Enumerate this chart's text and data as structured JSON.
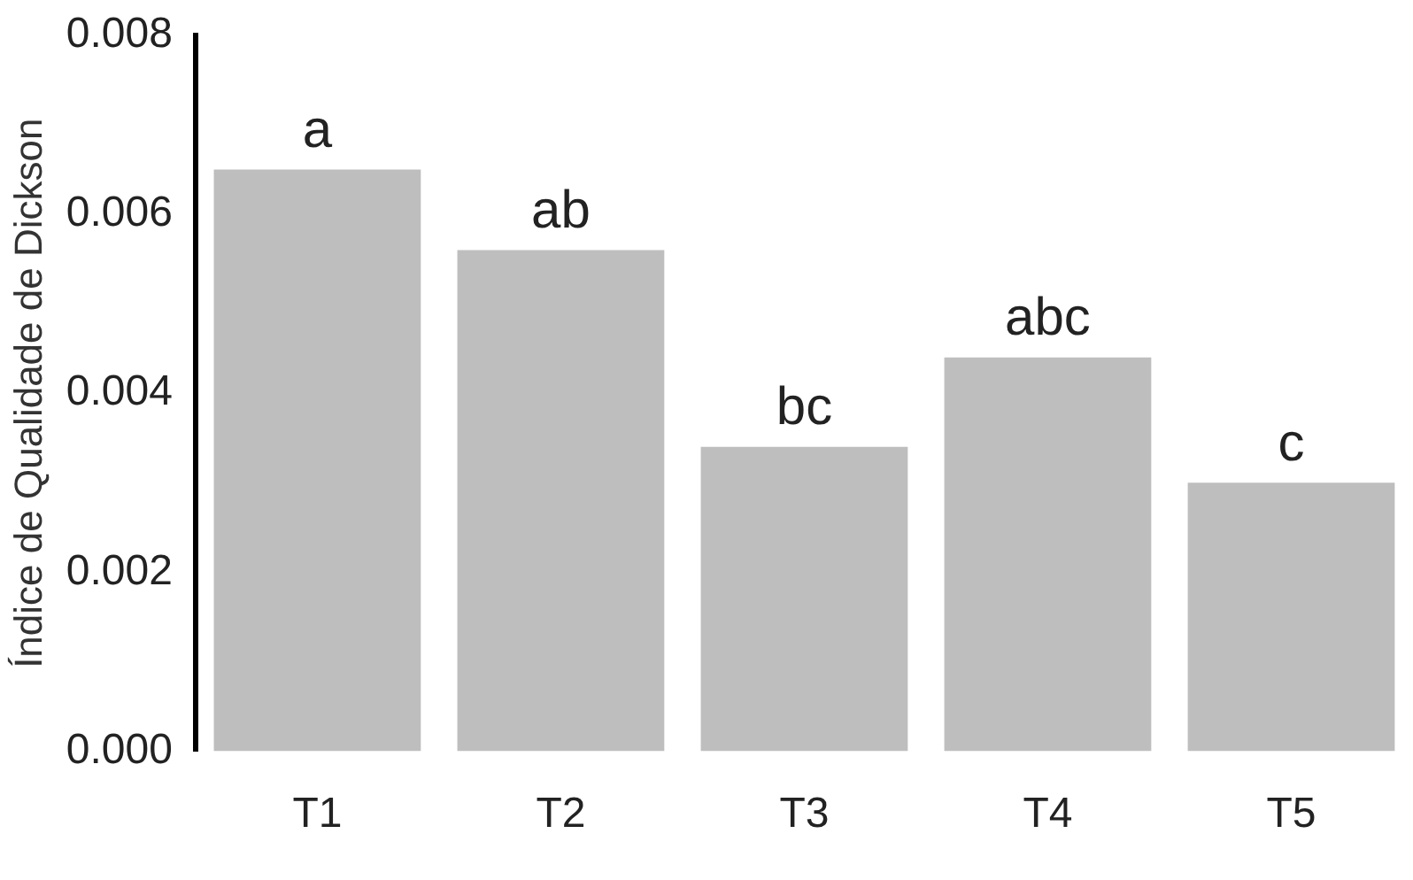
{
  "chart_data": {
    "type": "bar",
    "ylabel": "Índice de Qualidade de Dickson",
    "categories": [
      "T1",
      "T2",
      "T3",
      "T4",
      "T5"
    ],
    "values": [
      0.0065,
      0.0056,
      0.0034,
      0.0044,
      0.003
    ],
    "color": "#bebebe",
    "ylim": [
      0,
      0.008
    ],
    "yticks": [
      {
        "value": 0,
        "label": "0.000"
      },
      {
        "value": 0.002,
        "label": "0.002"
      },
      {
        "value": 0.004,
        "label": "0.004"
      },
      {
        "value": 0.006,
        "label": "0.006"
      },
      {
        "value": 0.008,
        "label": "0.008"
      }
    ],
    "grid": false,
    "legend": false,
    "annotations": [
      {
        "text": "a",
        "x": "T1",
        "y": 0.0065
      },
      {
        "text": "ab",
        "x": "T2",
        "y": 0.0056
      },
      {
        "text": "bc",
        "x": "T3",
        "y": 0.0034
      },
      {
        "text": "abc",
        "x": "T4",
        "y": 0.0044
      },
      {
        "text": "c",
        "x": "T5",
        "y": 0.003
      }
    ]
  }
}
